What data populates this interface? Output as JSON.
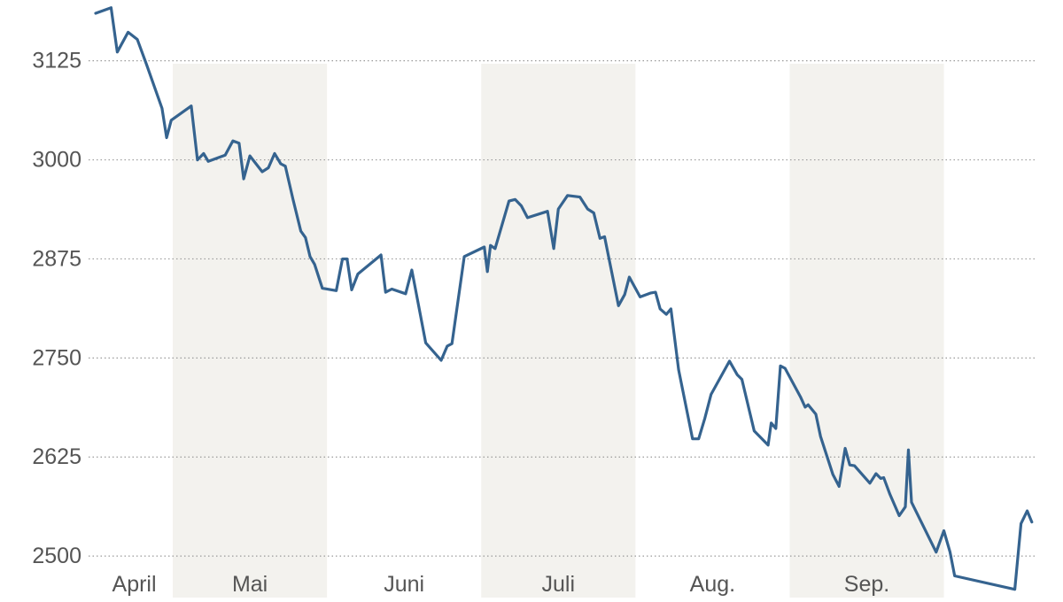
{
  "chart_data": {
    "type": "line",
    "title": "",
    "xlabel": "",
    "ylabel": "",
    "ylim": [
      2470,
      3195
    ],
    "xlim": [
      0.0,
      6.1
    ],
    "grid": "horizontal-dotted",
    "month_ticks": [
      {
        "label": "April",
        "x": 0.25
      },
      {
        "label": "Mai",
        "x": 1.0
      },
      {
        "label": "Juni",
        "x": 2.0
      },
      {
        "label": "Juli",
        "x": 3.0
      },
      {
        "label": "Aug.",
        "x": 4.0
      },
      {
        "label": "Sep.",
        "x": 5.0
      }
    ],
    "shaded_months": [
      {
        "label": "Mai",
        "from": 0.5,
        "to": 1.5
      },
      {
        "label": "Juli",
        "from": 2.5,
        "to": 3.5
      },
      {
        "label": "Sep.",
        "from": 4.5,
        "to": 5.5
      }
    ],
    "yticks": [
      2500,
      2625,
      2750,
      2875,
      3000,
      3125
    ],
    "line_color": "#35638f",
    "shade_color": "#f3f2ee",
    "series": [
      {
        "values": [
          [
            0.0,
            3185
          ],
          [
            0.1,
            3192
          ],
          [
            0.14,
            3136
          ],
          [
            0.21,
            3161
          ],
          [
            0.27,
            3152
          ],
          [
            0.33,
            3120
          ],
          [
            0.43,
            3065
          ],
          [
            0.46,
            3028
          ],
          [
            0.49,
            3050
          ],
          [
            0.62,
            3068
          ],
          [
            0.66,
            3000
          ],
          [
            0.7,
            3008
          ],
          [
            0.73,
            2998
          ],
          [
            0.84,
            3006
          ],
          [
            0.89,
            3024
          ],
          [
            0.93,
            3021
          ],
          [
            0.96,
            2976
          ],
          [
            1.0,
            3005
          ],
          [
            1.08,
            2985
          ],
          [
            1.12,
            2990
          ],
          [
            1.16,
            3008
          ],
          [
            1.2,
            2995
          ],
          [
            1.23,
            2992
          ],
          [
            1.28,
            2950
          ],
          [
            1.33,
            2910
          ],
          [
            1.36,
            2902
          ],
          [
            1.39,
            2878
          ],
          [
            1.42,
            2868
          ],
          [
            1.47,
            2838
          ],
          [
            1.56,
            2835
          ],
          [
            1.6,
            2875
          ],
          [
            1.63,
            2875
          ],
          [
            1.66,
            2836
          ],
          [
            1.7,
            2856
          ],
          [
            1.85,
            2880
          ],
          [
            1.88,
            2833
          ],
          [
            1.92,
            2837
          ],
          [
            2.01,
            2831
          ],
          [
            2.05,
            2861
          ],
          [
            2.14,
            2769
          ],
          [
            2.24,
            2747
          ],
          [
            2.28,
            2765
          ],
          [
            2.31,
            2768
          ],
          [
            2.39,
            2878
          ],
          [
            2.52,
            2890
          ],
          [
            2.54,
            2859
          ],
          [
            2.56,
            2892
          ],
          [
            2.59,
            2888
          ],
          [
            2.68,
            2948
          ],
          [
            2.72,
            2950
          ],
          [
            2.76,
            2942
          ],
          [
            2.8,
            2927
          ],
          [
            2.93,
            2935
          ],
          [
            2.97,
            2888
          ],
          [
            3.0,
            2938
          ],
          [
            3.06,
            2955
          ],
          [
            3.14,
            2953
          ],
          [
            3.19,
            2938
          ],
          [
            3.23,
            2933
          ],
          [
            3.27,
            2901
          ],
          [
            3.3,
            2903
          ],
          [
            3.39,
            2816
          ],
          [
            3.43,
            2830
          ],
          [
            3.46,
            2852
          ],
          [
            3.53,
            2827
          ],
          [
            3.6,
            2832
          ],
          [
            3.63,
            2833
          ],
          [
            3.66,
            2812
          ],
          [
            3.7,
            2805
          ],
          [
            3.73,
            2812
          ],
          [
            3.78,
            2735
          ],
          [
            3.87,
            2648
          ],
          [
            3.91,
            2648
          ],
          [
            3.95,
            2674
          ],
          [
            3.99,
            2704
          ],
          [
            4.11,
            2746
          ],
          [
            4.16,
            2729
          ],
          [
            4.19,
            2723
          ],
          [
            4.27,
            2658
          ],
          [
            4.36,
            2640
          ],
          [
            4.38,
            2668
          ],
          [
            4.41,
            2661
          ],
          [
            4.44,
            2740
          ],
          [
            4.47,
            2737
          ],
          [
            4.57,
            2701
          ],
          [
            4.6,
            2688
          ],
          [
            4.62,
            2691
          ],
          [
            4.67,
            2679
          ],
          [
            4.7,
            2651
          ],
          [
            4.78,
            2603
          ],
          [
            4.82,
            2588
          ],
          [
            4.86,
            2636
          ],
          [
            4.89,
            2615
          ],
          [
            4.92,
            2614
          ],
          [
            5.02,
            2592
          ],
          [
            5.06,
            2604
          ],
          [
            5.09,
            2598
          ],
          [
            5.11,
            2599
          ],
          [
            5.15,
            2578
          ],
          [
            5.21,
            2551
          ],
          [
            5.25,
            2562
          ],
          [
            5.27,
            2634
          ],
          [
            5.29,
            2568
          ],
          [
            5.45,
            2505
          ],
          [
            5.5,
            2532
          ],
          [
            5.54,
            2505
          ],
          [
            5.57,
            2475
          ],
          [
            5.96,
            2458
          ],
          [
            6.0,
            2541
          ],
          [
            6.04,
            2557
          ],
          [
            6.07,
            2543
          ]
        ]
      }
    ]
  }
}
